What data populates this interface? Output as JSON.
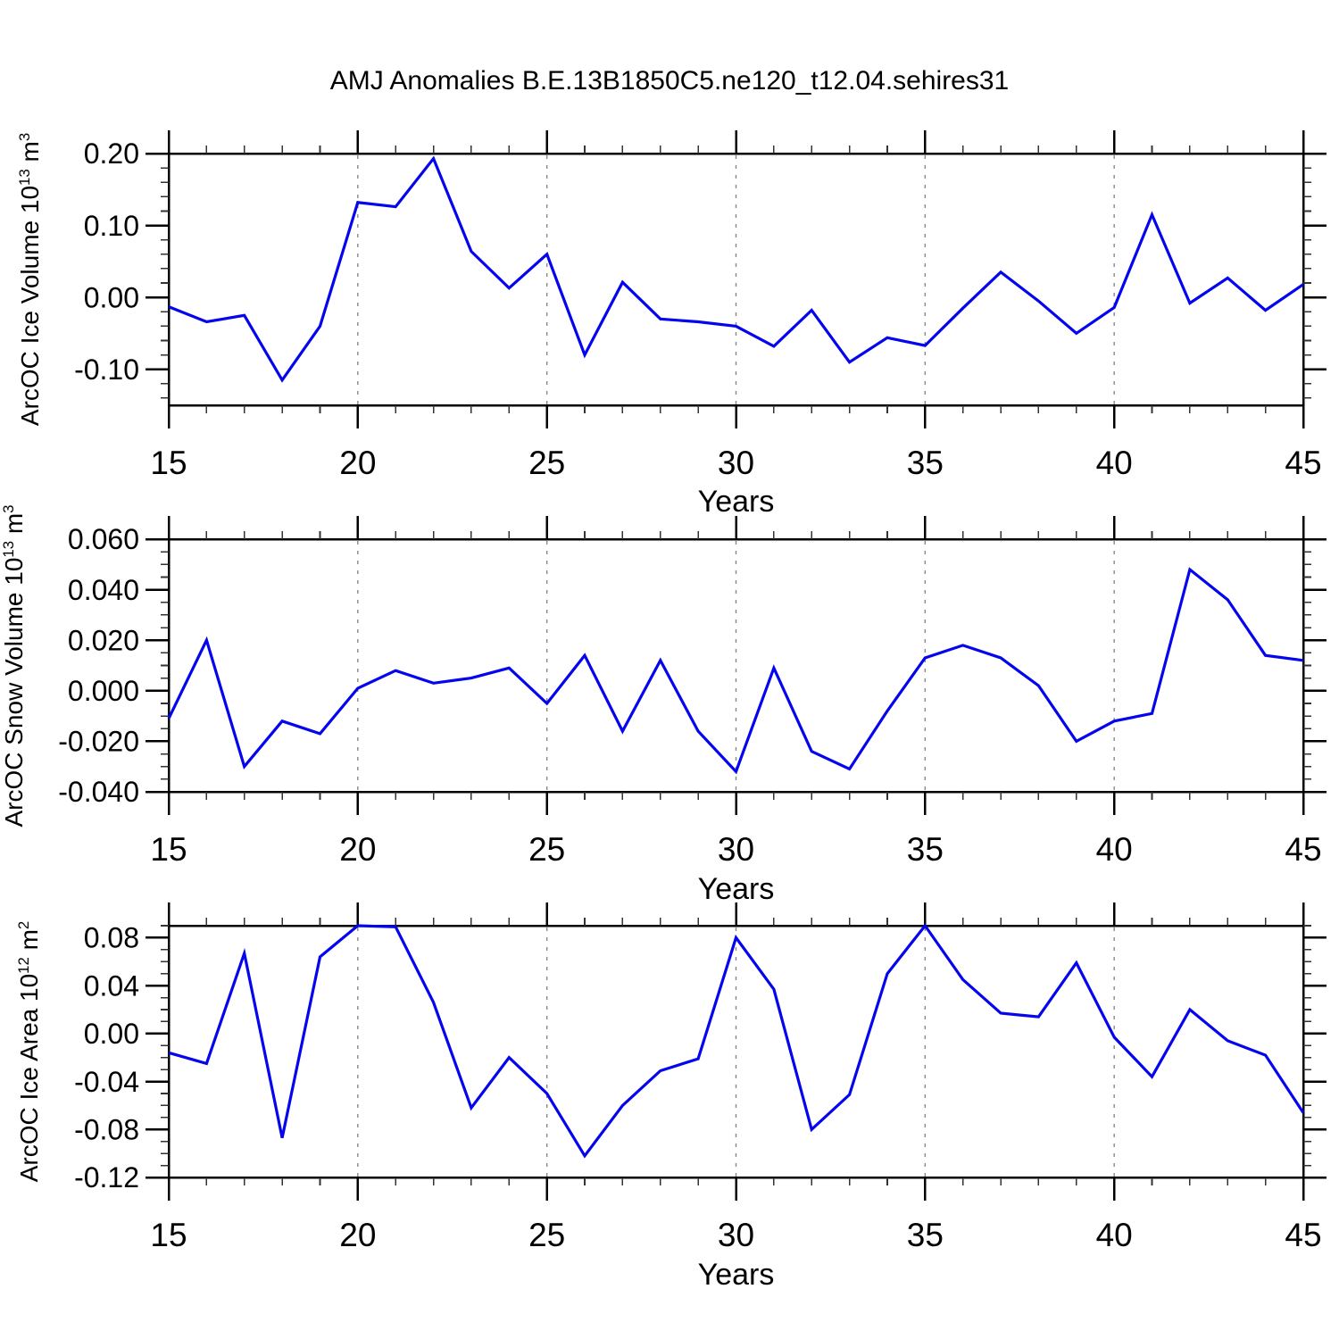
{
  "title": "AMJ Anomalies B.E.13B1850C5.ne120_t12.04.sehires31",
  "colors": {
    "line": "#0404EE",
    "grid": "#888888",
    "axis": "#000000",
    "minor_tick": "#333333"
  },
  "chart_data": [
    {
      "type": "line",
      "name": "ice-volume",
      "ylabel": {
        "base": "ArcOC Ice Volume 10",
        "exponent": "13",
        "unit": " m",
        "unit_exponent": "3"
      },
      "xlabel": "Years",
      "xlim": [
        15,
        45
      ],
      "ylim": [
        -0.15,
        0.2
      ],
      "xticks": [
        15,
        20,
        25,
        30,
        35,
        40,
        45
      ],
      "xminor_step": 1,
      "grid_x": [
        20,
        25,
        30,
        35,
        40
      ],
      "ytick_values": [
        0.2,
        0.1,
        0.0,
        -0.1
      ],
      "ytick_labels": [
        "0.20",
        "0.10",
        "0.00",
        "-0.10"
      ],
      "yminor_step": 0.02,
      "x": [
        15,
        16,
        17,
        18,
        19,
        20,
        21,
        22,
        23,
        24,
        25,
        26,
        27,
        28,
        29,
        30,
        31,
        32,
        33,
        34,
        35,
        36,
        37,
        38,
        39,
        40,
        41,
        42,
        43,
        44,
        45
      ],
      "values": [
        -0.013,
        -0.034,
        -0.025,
        -0.115,
        -0.04,
        0.132,
        0.126,
        0.193,
        0.064,
        0.013,
        0.06,
        -0.08,
        0.021,
        -0.03,
        -0.034,
        -0.04,
        -0.068,
        -0.018,
        -0.09,
        -0.056,
        -0.067,
        -0.015,
        0.035,
        -0.005,
        -0.05,
        -0.014,
        0.115,
        -0.008,
        0.027,
        -0.018,
        0.018
      ]
    },
    {
      "type": "line",
      "name": "snow-volume",
      "ylabel": {
        "base": "ArcOC Snow Volume 10",
        "exponent": "13",
        "unit": " m",
        "unit_exponent": "3"
      },
      "xlabel": "Years",
      "xlim": [
        15,
        45
      ],
      "ylim": [
        -0.04,
        0.06
      ],
      "xticks": [
        15,
        20,
        25,
        30,
        35,
        40,
        45
      ],
      "xminor_step": 1,
      "grid_x": [
        20,
        25,
        30,
        35,
        40
      ],
      "ytick_values": [
        0.06,
        0.04,
        0.02,
        0.0,
        -0.02,
        -0.04
      ],
      "ytick_labels": [
        "0.060",
        "0.040",
        "0.020",
        "0.000",
        "-0.020",
        "-0.040"
      ],
      "yminor_step": 0.005,
      "x": [
        15,
        16,
        17,
        18,
        19,
        20,
        21,
        22,
        23,
        24,
        25,
        26,
        27,
        28,
        29,
        30,
        31,
        32,
        33,
        34,
        35,
        36,
        37,
        38,
        39,
        40,
        41,
        42,
        43,
        44,
        45
      ],
      "values": [
        -0.011,
        0.02,
        -0.03,
        -0.012,
        -0.017,
        0.001,
        0.008,
        0.003,
        0.005,
        0.009,
        -0.005,
        0.014,
        -0.016,
        0.012,
        -0.016,
        -0.032,
        0.009,
        -0.024,
        -0.031,
        -0.008,
        0.013,
        0.018,
        0.013,
        0.002,
        -0.02,
        -0.012,
        -0.009,
        0.048,
        0.036,
        0.014,
        0.012
      ]
    },
    {
      "type": "line",
      "name": "ice-area",
      "ylabel": {
        "base": "ArcOC Ice Area 10",
        "exponent": "12",
        "unit": " m",
        "unit_exponent": "2"
      },
      "xlabel": "Years",
      "xlim": [
        15,
        45
      ],
      "ylim": [
        -0.12,
        0.09
      ],
      "xticks": [
        15,
        20,
        25,
        30,
        35,
        40,
        45
      ],
      "xminor_step": 1,
      "grid_x": [
        20,
        25,
        30,
        35,
        40
      ],
      "ytick_values": [
        0.08,
        0.04,
        0.0,
        -0.04,
        -0.08,
        -0.12
      ],
      "ytick_labels": [
        "0.08",
        "0.04",
        "0.00",
        "-0.04",
        "-0.08",
        "-0.12"
      ],
      "yminor_step": 0.01,
      "x": [
        15,
        16,
        17,
        18,
        19,
        20,
        21,
        22,
        23,
        24,
        25,
        26,
        27,
        28,
        29,
        30,
        31,
        32,
        33,
        34,
        35,
        36,
        37,
        38,
        39,
        40,
        41,
        42,
        43,
        44,
        45
      ],
      "values": [
        -0.016,
        -0.025,
        0.067,
        -0.087,
        0.064,
        0.09,
        0.089,
        0.026,
        -0.062,
        -0.02,
        -0.05,
        -0.102,
        -0.06,
        -0.031,
        -0.021,
        0.08,
        0.037,
        -0.08,
        -0.051,
        0.05,
        0.09,
        0.045,
        0.017,
        0.014,
        0.059,
        -0.003,
        -0.036,
        0.02,
        -0.006,
        -0.018,
        -0.066
      ]
    }
  ]
}
